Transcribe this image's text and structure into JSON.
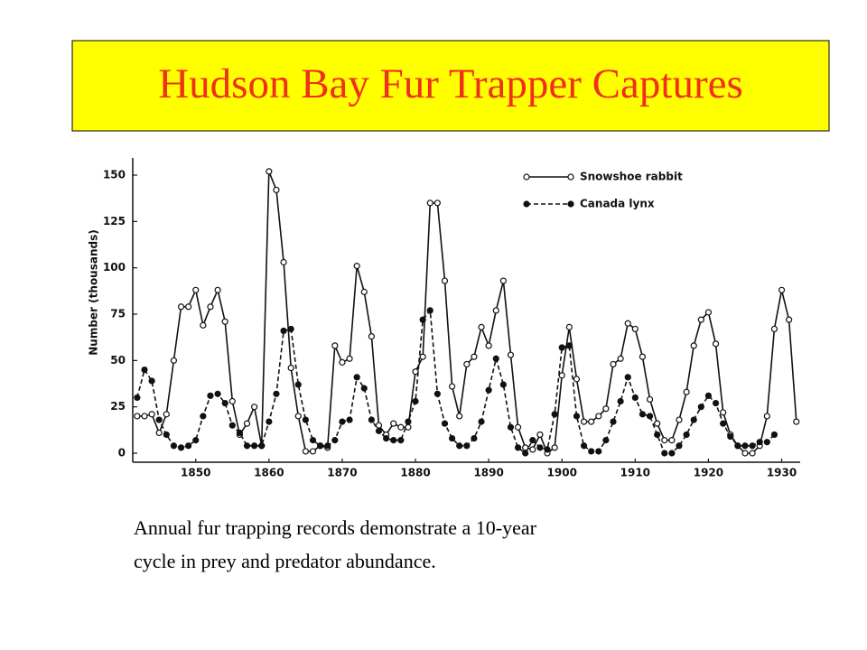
{
  "chart_data": {
    "type": "line",
    "title": "Hudson Bay Fur Trapper Captures",
    "ylabel": "Number (thousands)",
    "caption": [
      "Annual fur trapping records demonstrate a 10-year",
      "cycle in prey and predator abundance."
    ],
    "x": [
      1842,
      1843,
      1844,
      1845,
      1846,
      1847,
      1848,
      1849,
      1850,
      1851,
      1852,
      1853,
      1854,
      1855,
      1856,
      1857,
      1858,
      1859,
      1860,
      1861,
      1862,
      1863,
      1864,
      1865,
      1866,
      1867,
      1868,
      1869,
      1870,
      1871,
      1872,
      1873,
      1874,
      1875,
      1876,
      1877,
      1878,
      1879,
      1880,
      1881,
      1882,
      1883,
      1884,
      1885,
      1886,
      1887,
      1888,
      1889,
      1890,
      1891,
      1892,
      1893,
      1894,
      1895,
      1896,
      1897,
      1898,
      1899,
      1900,
      1901,
      1902,
      1903,
      1904,
      1905,
      1906,
      1907,
      1908,
      1909,
      1910,
      1911,
      1912,
      1913,
      1914,
      1915,
      1916,
      1917,
      1918,
      1919,
      1920,
      1921,
      1922,
      1923,
      1924,
      1925,
      1926,
      1927,
      1928,
      1929,
      1930,
      1931,
      1932
    ],
    "series": [
      {
        "name": "Snowshoe rabbit",
        "color": "#111111",
        "marker": "open",
        "dashed": false,
        "values": [
          20,
          20,
          21,
          11,
          21,
          50,
          79,
          79,
          88,
          69,
          79,
          88,
          71,
          28,
          10,
          16,
          25,
          4,
          152,
          142,
          103,
          46,
          20,
          1,
          1,
          4,
          3,
          58,
          49,
          51,
          101,
          87,
          63,
          15,
          10,
          16,
          14,
          14,
          44,
          52,
          135,
          135,
          93,
          36,
          20,
          48,
          52,
          68,
          58,
          77,
          93,
          53,
          14,
          3,
          2,
          10,
          0,
          3,
          42,
          68,
          40,
          17,
          17,
          20,
          24,
          48,
          51,
          70,
          67,
          52,
          29,
          16,
          7,
          7,
          18,
          33,
          58,
          72,
          76,
          59,
          22,
          10,
          4,
          0,
          0,
          4,
          20,
          67,
          88,
          72,
          17
        ]
      },
      {
        "name": "Canada lynx",
        "color": "#111111",
        "marker": "filled",
        "dashed": true,
        "values": [
          30,
          45,
          39,
          18,
          10,
          4,
          3,
          4,
          7,
          20,
          31,
          32,
          27,
          15,
          11,
          4,
          4,
          4,
          17,
          32,
          66,
          67,
          37,
          18,
          7,
          4,
          4,
          7,
          17,
          18,
          41,
          35,
          18,
          12,
          8,
          7,
          7,
          17,
          28,
          72,
          77,
          32,
          16,
          8,
          4,
          4,
          8,
          17,
          34,
          51,
          37,
          14,
          3,
          0,
          7,
          3,
          2,
          21,
          57,
          58,
          20,
          4,
          1,
          1,
          7,
          17,
          28,
          41,
          30,
          21,
          20,
          10,
          0,
          0,
          4,
          10,
          18,
          25,
          31,
          27,
          16,
          9,
          4,
          4,
          4,
          6,
          6,
          10,
          null,
          null,
          null
        ]
      }
    ],
    "xlim": [
      1841.4,
      1932.4
    ],
    "ylim": [
      0,
      150
    ],
    "xticks": [
      1850,
      1860,
      1870,
      1880,
      1890,
      1900,
      1910,
      1920,
      1930
    ],
    "yticks": [
      0,
      25,
      50,
      75,
      100,
      125,
      150
    ],
    "legend": "upper right",
    "grid": false
  }
}
